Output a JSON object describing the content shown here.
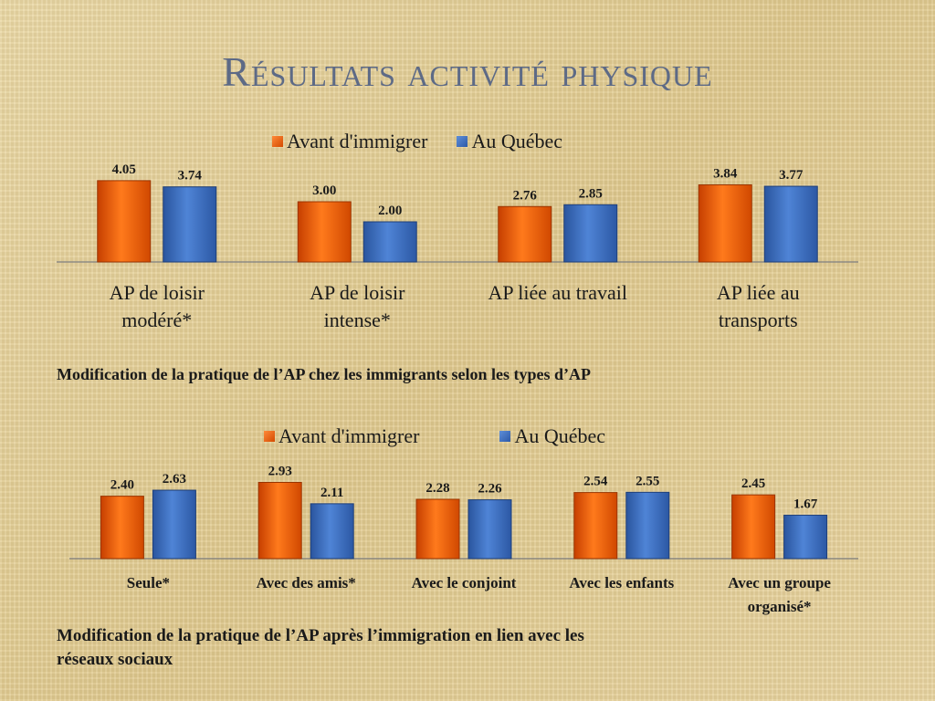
{
  "title": "Résultats activité physique",
  "colors": {
    "orange": "#ff6a10",
    "blue": "#3b6fc4",
    "title": "#5d6a86"
  },
  "chart_data": [
    {
      "type": "bar",
      "legend": [
        "Avant d'immigrer",
        "Au Québec"
      ],
      "categories": [
        [
          "AP de loisir",
          "modéré*"
        ],
        [
          "AP de loisir",
          "intense*"
        ],
        [
          "AP liée au travail"
        ],
        [
          "AP liée au",
          "transports"
        ]
      ],
      "series": [
        {
          "name": "Avant d'immigrer",
          "values": [
            4.05,
            3.0,
            2.76,
            3.84
          ]
        },
        {
          "name": "Au Québec",
          "values": [
            3.74,
            2.0,
            2.85,
            3.77
          ]
        }
      ],
      "caption": "Modification de la pratique de l’AP chez les immigrants selon les types d’AP"
    },
    {
      "type": "bar",
      "legend": [
        "Avant d'immigrer",
        "Au Québec"
      ],
      "categories": [
        [
          "Seule*"
        ],
        [
          "Avec des amis*"
        ],
        [
          "Avec le conjoint"
        ],
        [
          "Avec les enfants"
        ],
        [
          "Avec un groupe",
          "organisé*"
        ]
      ],
      "series": [
        {
          "name": "Avant d'immigrer",
          "values": [
            2.4,
            2.93,
            2.28,
            2.54,
            2.45
          ]
        },
        {
          "name": "Au Québec",
          "values": [
            2.63,
            2.11,
            2.26,
            2.55,
            1.67
          ]
        }
      ],
      "caption_lines": [
        "Modification de la pratique de l’AP après l’immigration en lien avec les",
        "réseaux sociaux"
      ]
    }
  ]
}
